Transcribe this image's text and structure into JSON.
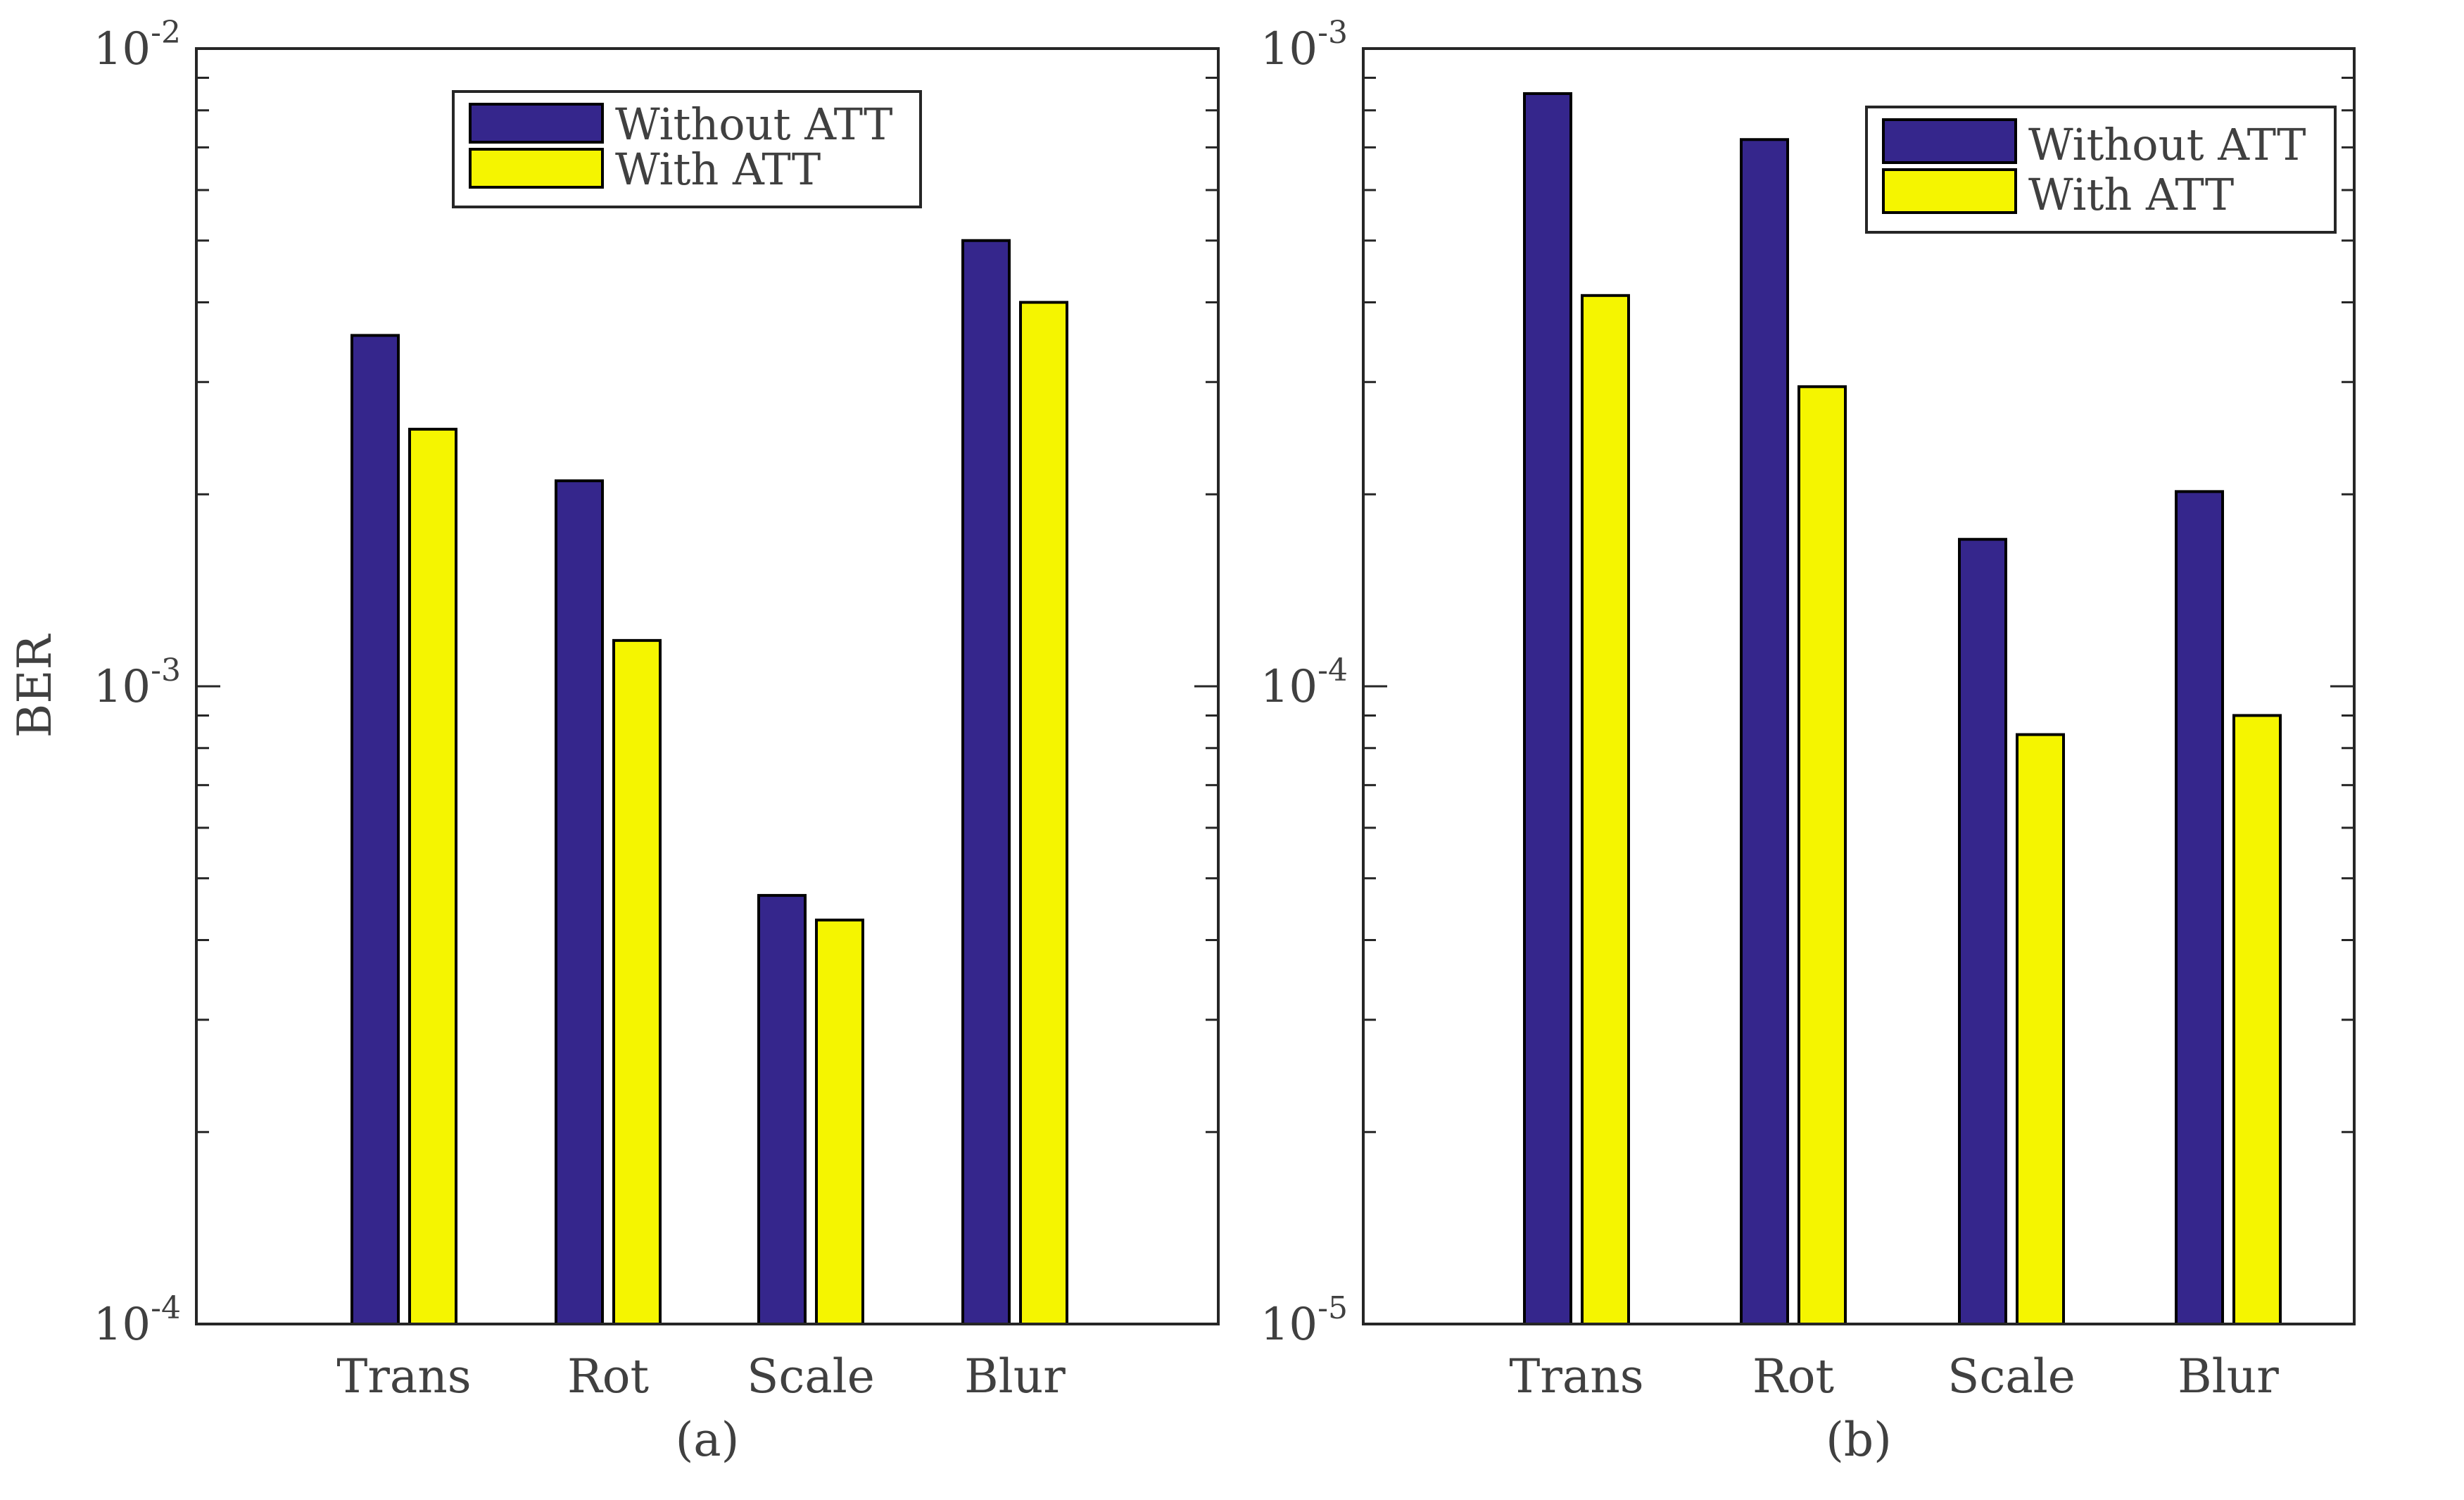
{
  "figure": {
    "ylabel": "BER"
  },
  "colors": {
    "without_att": "#35268c",
    "with_att": "#f5f500"
  },
  "chart_data": [
    {
      "type": "bar",
      "panel_label": "(a)",
      "title": "",
      "xlabel": "",
      "ylabel": "BER",
      "yscale": "log",
      "ylim": [
        0.0001,
        0.01
      ],
      "yticks": [
        {
          "base": "10",
          "exp": "-4",
          "value": 0.0001
        },
        {
          "base": "10",
          "exp": "-3",
          "value": 0.001
        },
        {
          "base": "10",
          "exp": "-2",
          "value": 0.01
        }
      ],
      "categories": [
        "Trans",
        "Rot",
        "Scale",
        "Blur"
      ],
      "legend_position": "top-center",
      "series": [
        {
          "name": "Without ATT",
          "values": [
            0.00355,
            0.0021,
            0.00047,
            0.005
          ]
        },
        {
          "name": "With ATT",
          "values": [
            0.00253,
            0.00118,
            0.00043,
            0.004
          ]
        }
      ]
    },
    {
      "type": "bar",
      "panel_label": "(b)",
      "title": "",
      "xlabel": "",
      "ylabel": "",
      "yscale": "log",
      "ylim": [
        1e-05,
        0.001
      ],
      "yticks": [
        {
          "base": "10",
          "exp": "-5",
          "value": 1e-05
        },
        {
          "base": "10",
          "exp": "-4",
          "value": 0.0001
        },
        {
          "base": "10",
          "exp": "-3",
          "value": 0.001
        }
      ],
      "categories": [
        "Trans",
        "Rot",
        "Scale",
        "Blur"
      ],
      "legend_position": "top-right",
      "series": [
        {
          "name": "Without ATT",
          "values": [
            0.00085,
            0.00072,
            0.00017,
            0.000202
          ]
        },
        {
          "name": "With ATT",
          "values": [
            0.00041,
            0.000295,
            8.4e-05,
            9e-05
          ]
        }
      ]
    }
  ]
}
